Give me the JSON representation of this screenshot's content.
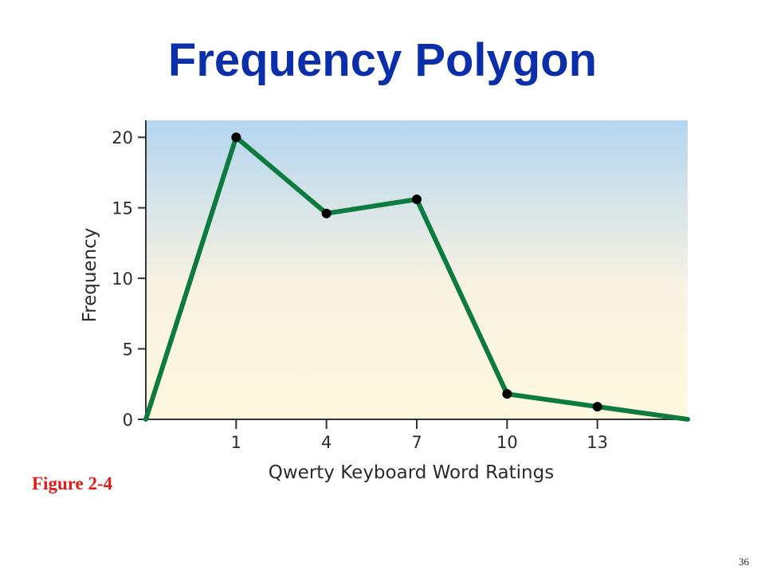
{
  "title": "Frequency Polygon",
  "caption": "Figure 2-4",
  "slide_number": "36",
  "colors": {
    "title": "#0b2fa8",
    "line": "#0d7a3e",
    "marker": "#000000",
    "caption": "#e01b1b",
    "background_top": "#b4d6f0",
    "background_bottom": "#fff9e0"
  },
  "chart_data": {
    "type": "line",
    "xlabel": "Qwerty Keyboard Word Ratings",
    "ylabel": "Frequency",
    "x": [
      -2,
      1,
      4,
      7,
      10,
      13,
      16
    ],
    "y": [
      0,
      20,
      14.6,
      15.6,
      1.8,
      0.9,
      0
    ],
    "markers": [
      false,
      true,
      true,
      true,
      true,
      true,
      false
    ],
    "xticks": [
      1,
      4,
      7,
      10,
      13
    ],
    "xtick_labels": [
      "1",
      "4",
      "7",
      "10",
      "13"
    ],
    "yticks": [
      0,
      5,
      10,
      15,
      20
    ],
    "ytick_labels": [
      "0",
      "5",
      "10",
      "15",
      "20"
    ],
    "xlim": [
      -2,
      16
    ],
    "ylim": [
      0,
      21.2
    ],
    "grid": false,
    "legend": "none"
  }
}
